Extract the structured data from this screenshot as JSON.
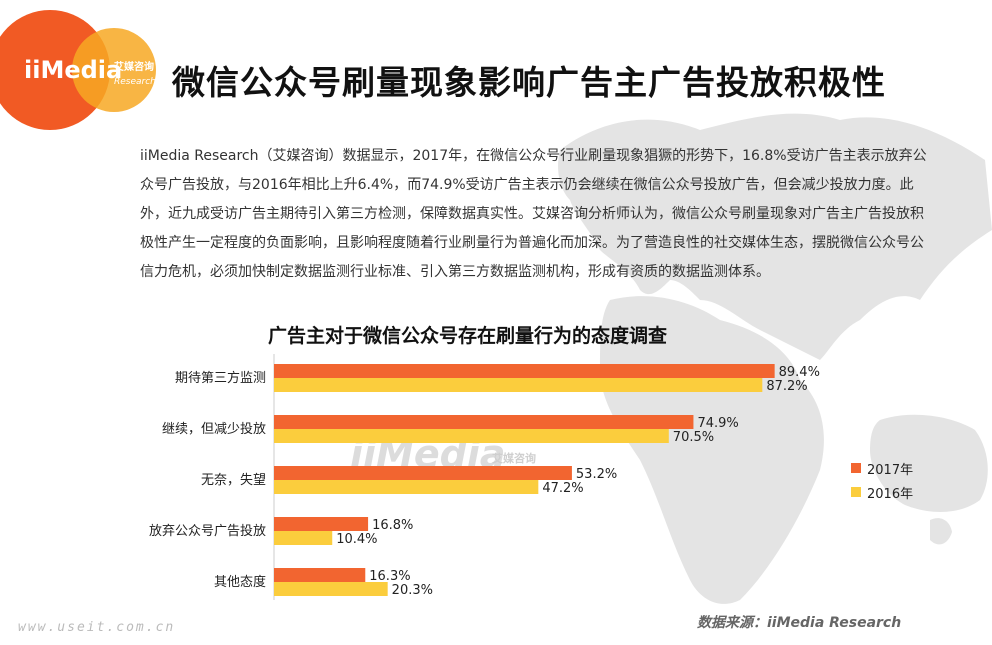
{
  "header": {
    "logo_text": "iiMedia",
    "logo_cn": "艾媒咨询",
    "logo_en": "Research",
    "title": "微信公众号刷量现象影响广告主广告投放积极性"
  },
  "intro": {
    "text": "iiMedia Research（艾媒咨询）数据显示，2017年，在微信公众号行业刷量现象猖獗的形势下，16.8%受访广告主表示放弃公众号广告投放，与2016年相比上升6.4%，而74.9%受访广告主表示仍会继续在微信公众号投放广告，但会减少投放力度。此外，近九成受访广告主期待引入第三方检测，保障数据真实性。艾媒咨询分析师认为，微信公众号刷量现象对广告主广告投放积极性产生一定程度的负面影响，且影响程度随着行业刷量行为普遍化而加深。为了营造良性的社交媒体生态，摆脱微信公众号公信力危机，必须加快制定数据监测行业标准、引入第三方数据监测机构，形成有资质的数据监测体系。"
  },
  "watermark": {
    "main": "iiMedia",
    "cn": "艾媒咨询"
  },
  "footer": {
    "source": "数据来源：iiMedia Research",
    "site": "www.useit.com.cn"
  },
  "colors": {
    "series_2017": "#f26530",
    "series_2016": "#fbcd3d",
    "logo_orange": "#f15a24",
    "logo_yellow": "#f7a823",
    "map_gray": "#e6e6e6"
  },
  "chart_data": {
    "type": "bar",
    "orientation": "horizontal",
    "title": "广告主对于微信公众号存在刷量行为的态度调查",
    "categories": [
      "期待第三方监测",
      "继续，但减少投放",
      "无奈，失望",
      "放弃公众号广告投放",
      "其他态度"
    ],
    "series": [
      {
        "name": "2017年",
        "values": [
          89.4,
          74.9,
          53.2,
          16.8,
          16.3
        ],
        "color": "#f26530"
      },
      {
        "name": "2016年",
        "values": [
          87.2,
          70.5,
          47.2,
          10.4,
          20.3
        ],
        "color": "#fbcd3d"
      }
    ],
    "value_suffix": "%",
    "xlim": [
      0,
      100
    ],
    "grid": false,
    "legend": "right"
  }
}
